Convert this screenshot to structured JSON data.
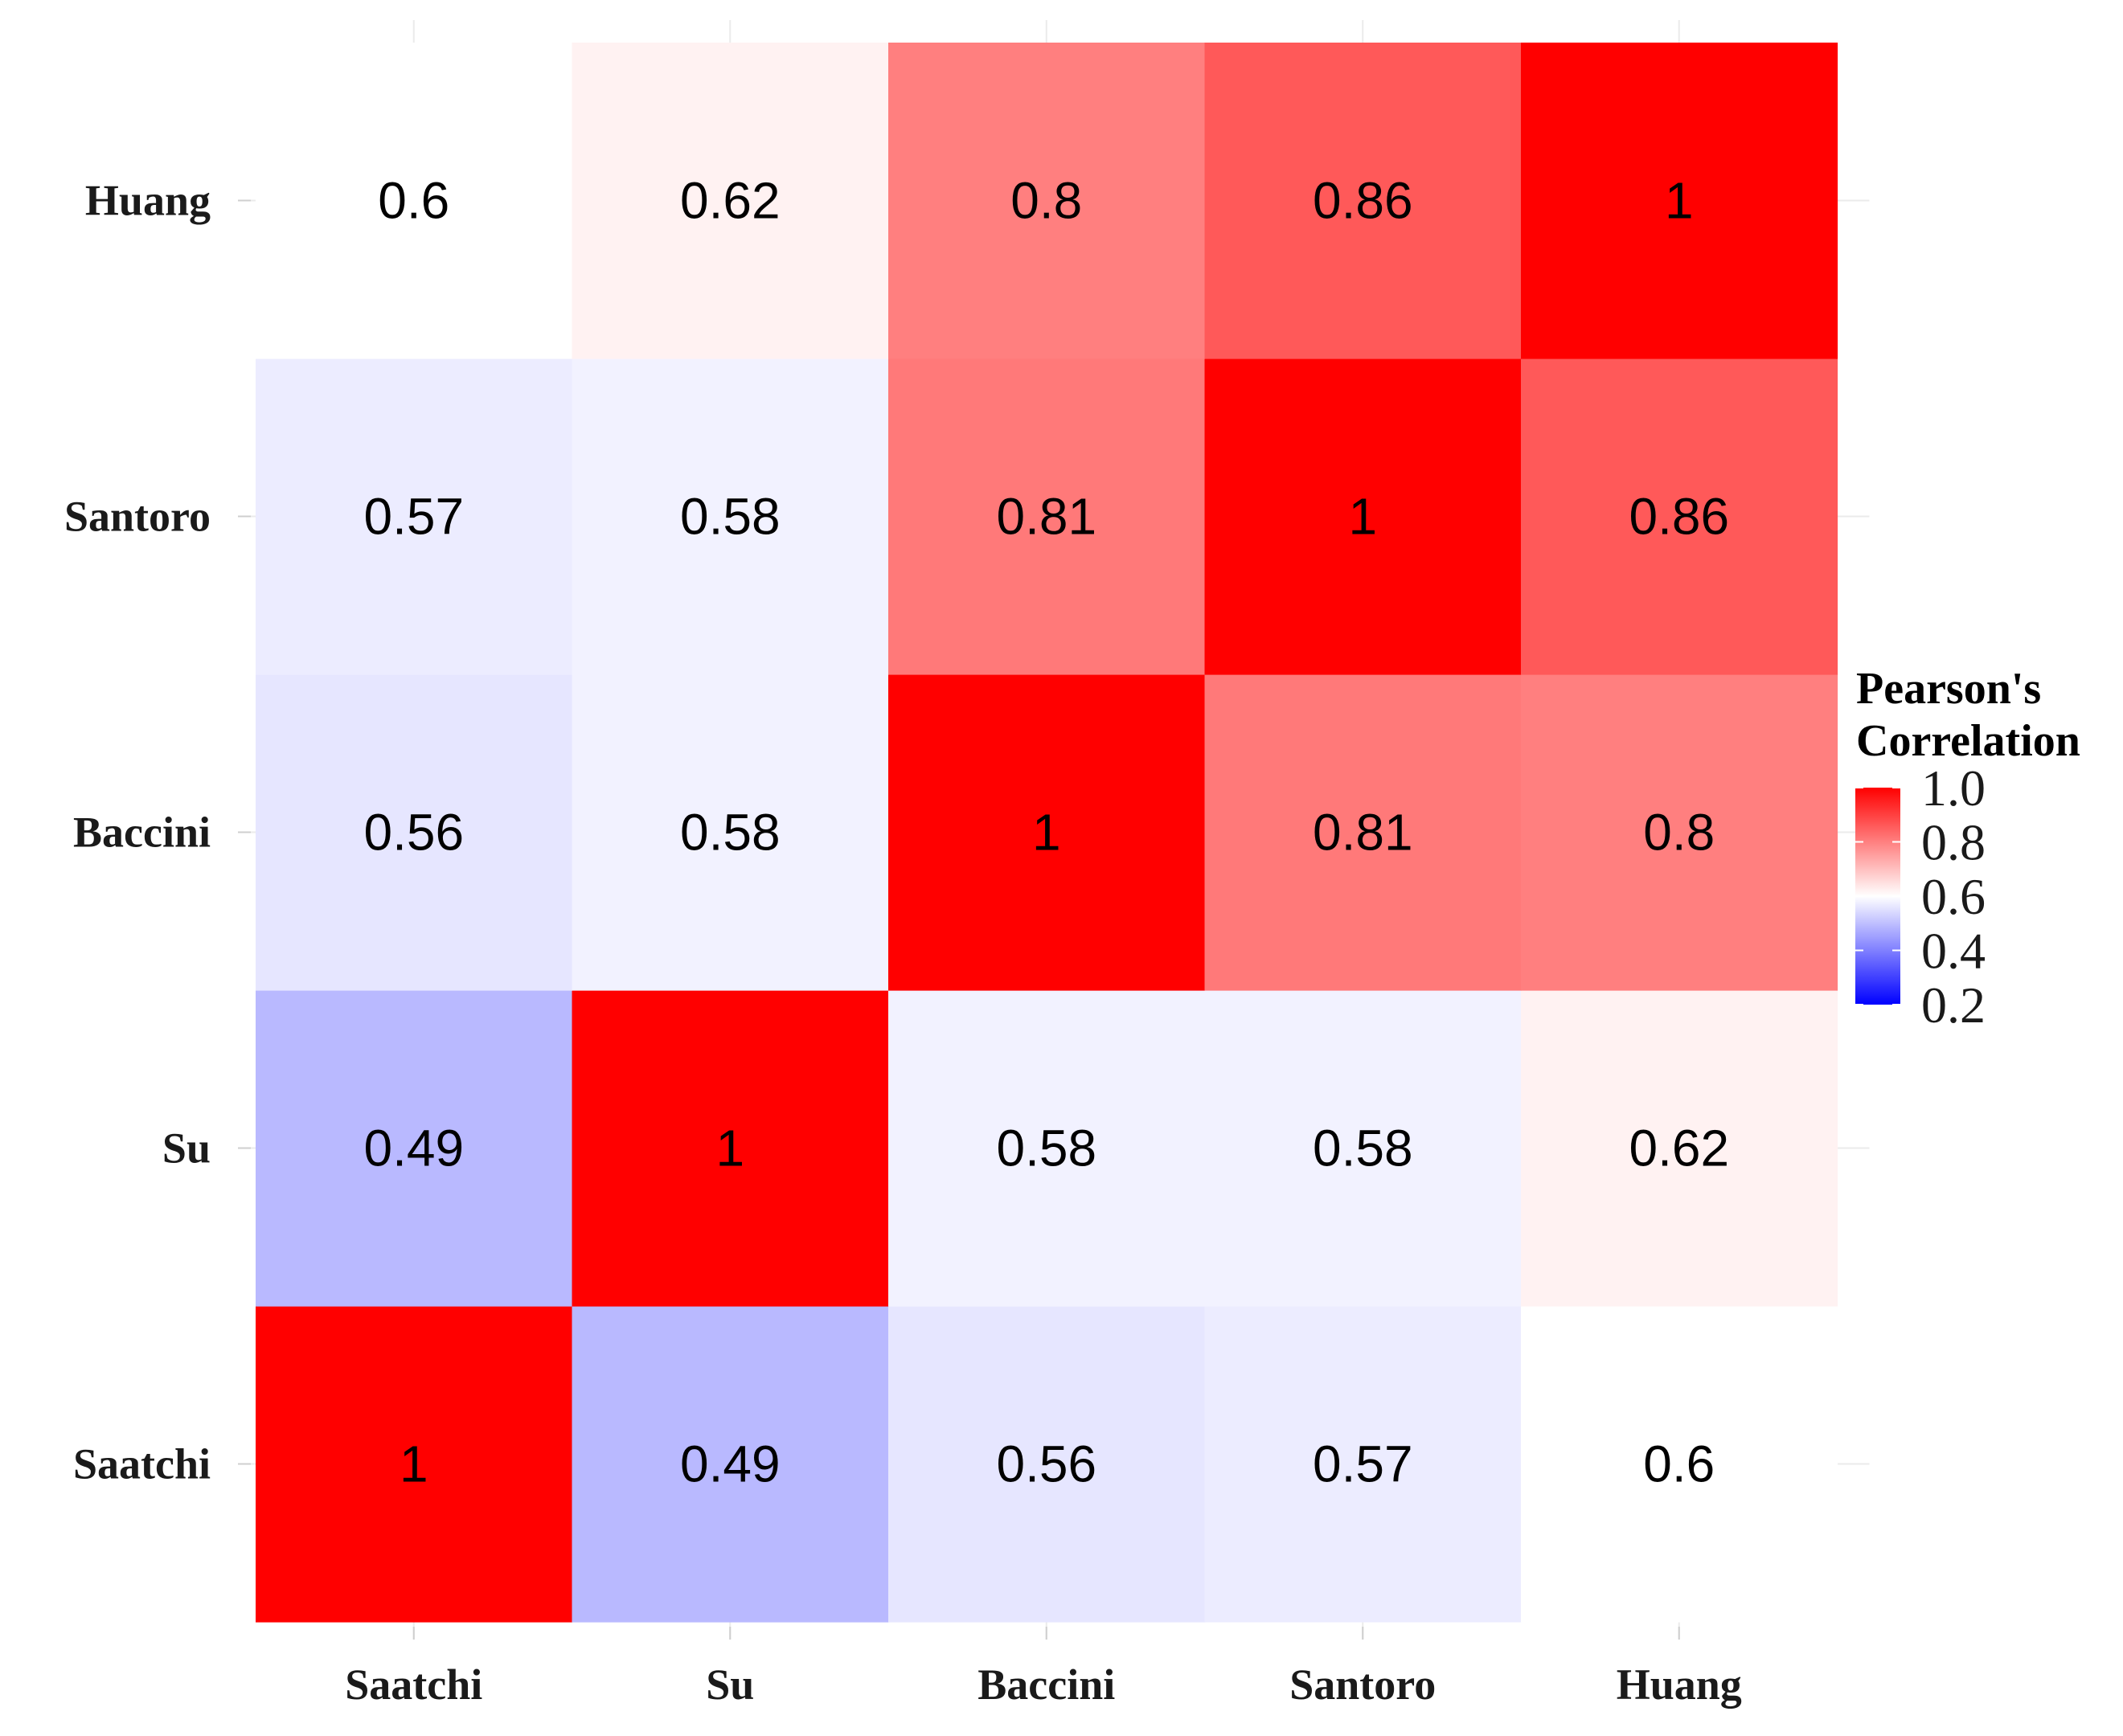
{
  "chart_data": {
    "type": "heatmap",
    "x_categories": [
      "Saatchi",
      "Su",
      "Baccini",
      "Santoro",
      "Huang"
    ],
    "y_categories": [
      "Saatchi",
      "Su",
      "Baccini",
      "Santoro",
      "Huang"
    ],
    "values": [
      [
        1,
        0.49,
        0.56,
        0.57,
        0.6
      ],
      [
        0.49,
        1,
        0.58,
        0.58,
        0.62
      ],
      [
        0.56,
        0.58,
        1,
        0.81,
        0.8
      ],
      [
        0.57,
        0.58,
        0.81,
        1,
        0.86
      ],
      [
        0.6,
        0.62,
        0.8,
        0.86,
        1
      ]
    ],
    "cell_labels": [
      [
        "1",
        "0.49",
        "0.56",
        "0.57",
        "0.6"
      ],
      [
        "0.49",
        "1",
        "0.58",
        "0.58",
        "0.62"
      ],
      [
        "0.56",
        "0.58",
        "1",
        "0.81",
        "0.8"
      ],
      [
        "0.57",
        "0.58",
        "0.81",
        "1",
        "0.86"
      ],
      [
        "0.6",
        "0.62",
        "0.8",
        "0.86",
        "1"
      ]
    ],
    "legend": {
      "title_lines": [
        "Pearson's",
        "Correlation"
      ],
      "tick_values": [
        0.2,
        0.4,
        0.6,
        0.8,
        1.0
      ],
      "tick_labels": [
        "0.2",
        "0.4",
        "0.6",
        "0.8",
        "1.0"
      ],
      "range": [
        0.2,
        1.0
      ],
      "placement": "right",
      "colors": {
        "low": "#0000ff",
        "mid": "#ffffff",
        "high": "#ff0000"
      },
      "midpoint": 0.6
    },
    "grid": true,
    "title": "",
    "xlabel": "",
    "ylabel": ""
  }
}
